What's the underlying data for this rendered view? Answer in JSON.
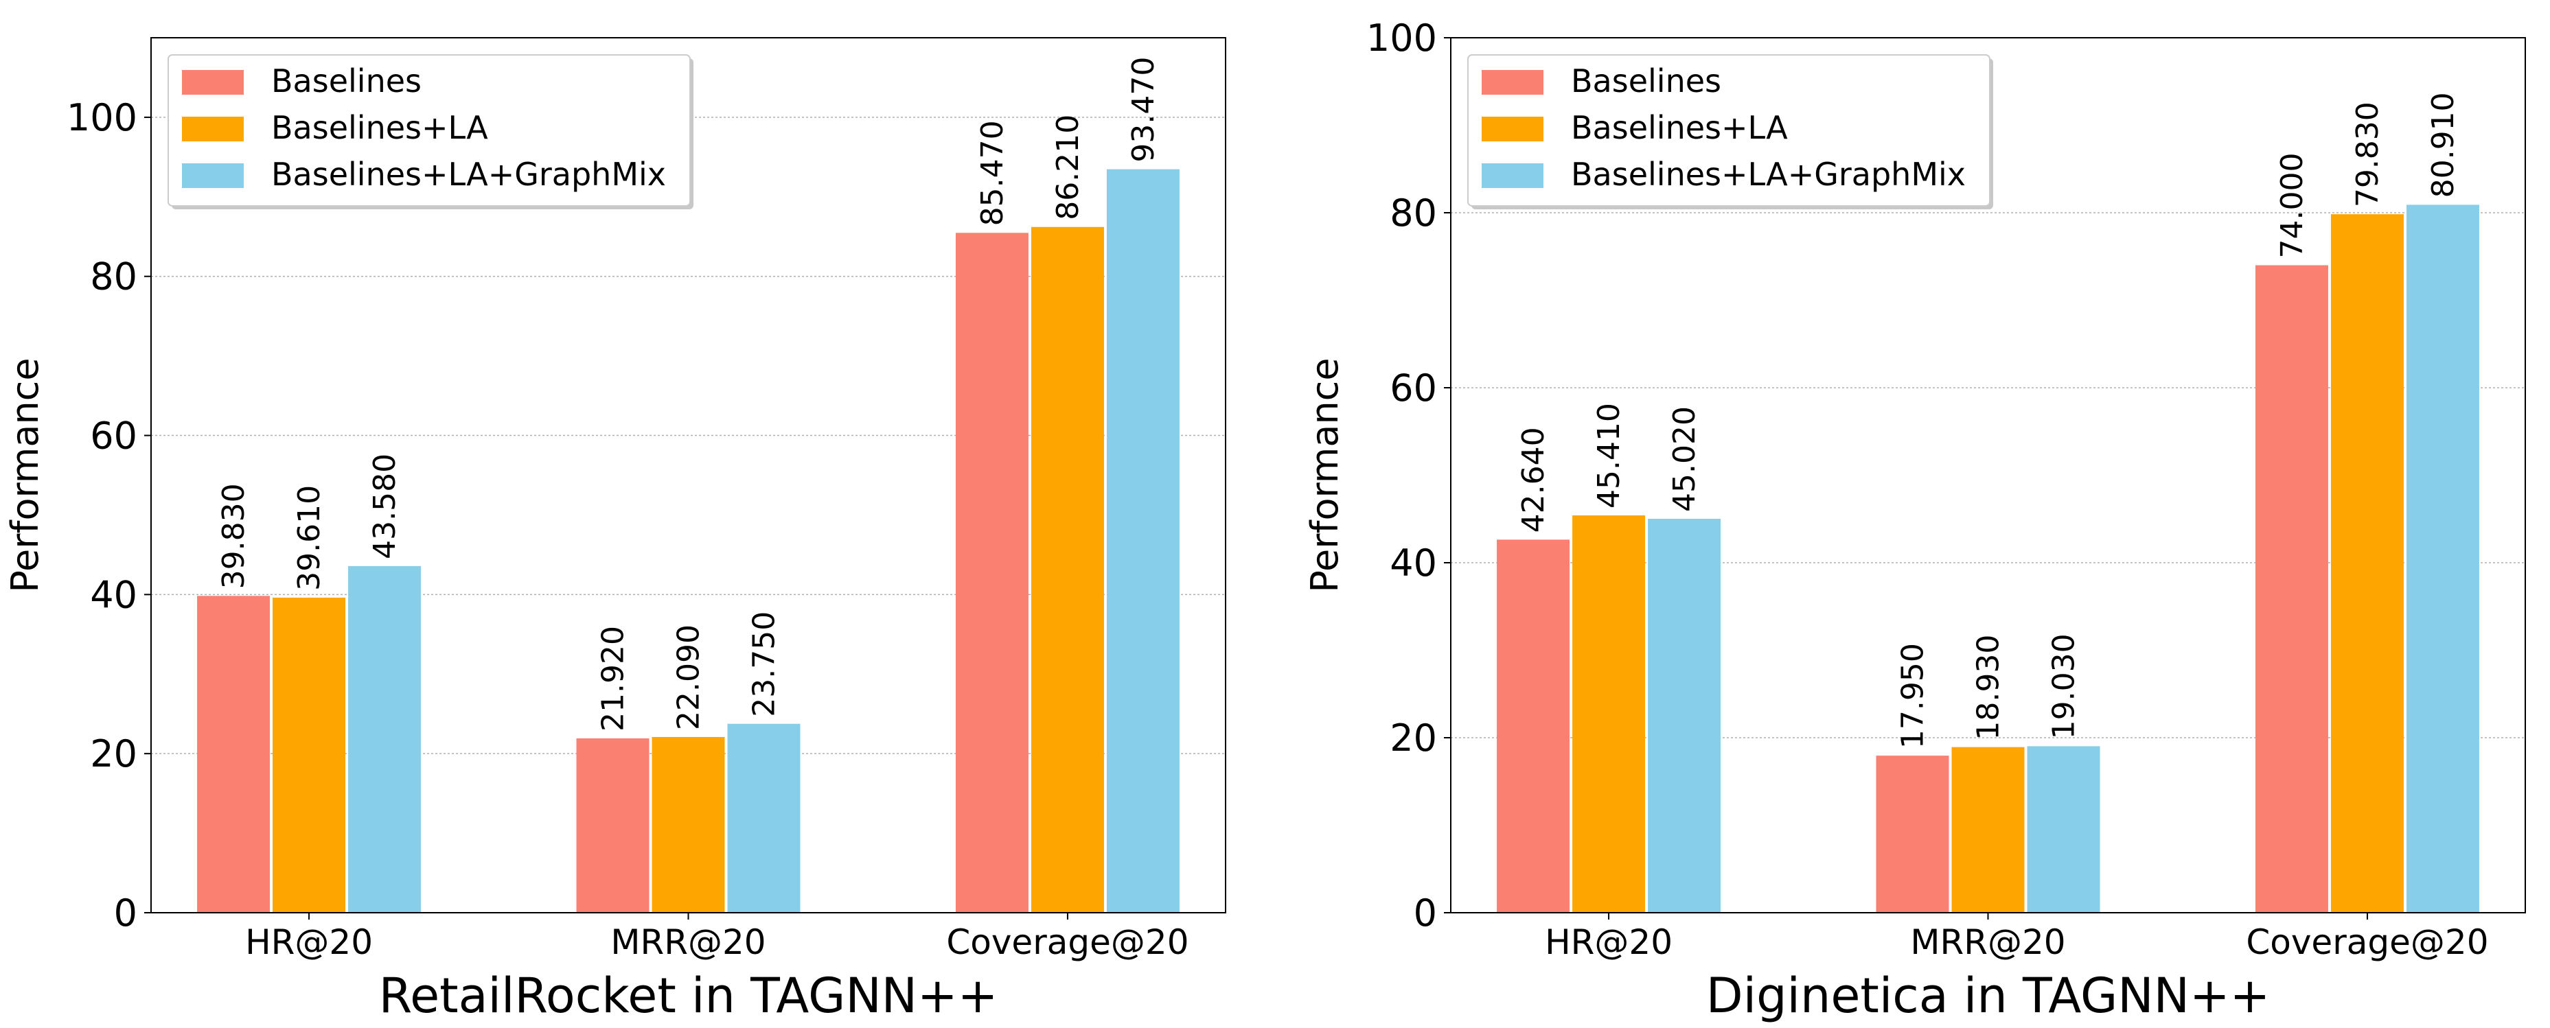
{
  "colors": {
    "Baselines": "#FA8072",
    "Baselines+LA": "#FFA500",
    "Baselines+LA+GraphMix": "#87CEEB",
    "axis": "#000000",
    "grid": "#b0b0b0"
  },
  "chart_data": [
    {
      "type": "bar",
      "title": "RetailRocket in TAGNN++",
      "xlabel": "RetailRocket in TAGNN++",
      "ylabel": "Performance",
      "ylim": [
        0,
        110
      ],
      "yticks": [
        0,
        20,
        40,
        60,
        80,
        100
      ],
      "ytick_labels": [
        "0",
        "20",
        "40",
        "60",
        "80",
        "100"
      ],
      "grid": true,
      "legend_position": "top-left",
      "categories": [
        "HR@20",
        "MRR@20",
        "Coverage@20"
      ],
      "series": [
        {
          "name": "Baselines",
          "values": [
            39.83,
            21.92,
            85.47
          ],
          "labels": [
            "39.830",
            "21.920",
            "85.470"
          ]
        },
        {
          "name": "Baselines+LA",
          "values": [
            39.61,
            22.09,
            86.21
          ],
          "labels": [
            "39.610",
            "22.090",
            "86.210"
          ]
        },
        {
          "name": "Baselines+LA+GraphMix",
          "values": [
            43.58,
            23.75,
            93.47
          ],
          "labels": [
            "43.580",
            "23.750",
            "93.470"
          ]
        }
      ]
    },
    {
      "type": "bar",
      "title": "Diginetica in TAGNN++",
      "xlabel": "Diginetica in TAGNN++",
      "ylabel": "Performance",
      "ylim": [
        0,
        100
      ],
      "yticks": [
        0,
        20,
        40,
        60,
        80,
        100
      ],
      "ytick_labels": [
        "0",
        "20",
        "40",
        "60",
        "80",
        "100"
      ],
      "grid": true,
      "legend_position": "top-left",
      "categories": [
        "HR@20",
        "MRR@20",
        "Coverage@20"
      ],
      "series": [
        {
          "name": "Baselines",
          "values": [
            42.64,
            17.95,
            74.0
          ],
          "labels": [
            "42.640",
            "17.950",
            "74.000"
          ]
        },
        {
          "name": "Baselines+LA",
          "values": [
            45.41,
            18.93,
            79.83
          ],
          "labels": [
            "45.410",
            "18.930",
            "79.830"
          ]
        },
        {
          "name": "Baselines+LA+GraphMix",
          "values": [
            45.02,
            19.03,
            80.91
          ],
          "labels": [
            "45.020",
            "19.030",
            "80.910"
          ]
        }
      ]
    }
  ]
}
